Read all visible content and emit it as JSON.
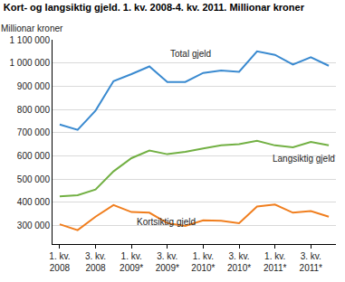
{
  "chart_data": {
    "type": "line",
    "title": "Kort- og langsiktig gjeld. 1. kv. 2008-4. kv. 2011. Millionar kroner",
    "ylabel": "Millionar kroner",
    "categories": [
      "1. kv. 2008",
      null,
      "3. kv. 2008",
      null,
      "1. kv. 2009*",
      null,
      "3. kv. 2009*",
      null,
      "1. kv. 2010*",
      null,
      "3. kv. 2010*",
      null,
      "1. kv. 2011*",
      null,
      "3. kv. 2011*",
      null
    ],
    "series": [
      {
        "name": "Total gjeld",
        "color": "#3a8ad0",
        "values": [
          735000,
          712000,
          795000,
          922000,
          952000,
          985000,
          918000,
          918000,
          957000,
          968000,
          962000,
          1050000,
          1035000,
          993000,
          1025000,
          988000
        ]
      },
      {
        "name": "Langsiktig gjeld",
        "color": "#72b043",
        "values": [
          425000,
          430000,
          455000,
          533000,
          590000,
          623000,
          607000,
          617000,
          632000,
          645000,
          650000,
          665000,
          645000,
          637000,
          660000,
          645000
        ]
      },
      {
        "name": "Kortsiktig gjeld",
        "color": "#f07e1e",
        "values": [
          305000,
          280000,
          338000,
          388000,
          358000,
          355000,
          310000,
          298000,
          322000,
          320000,
          310000,
          382000,
          390000,
          355000,
          362000,
          338000
        ]
      }
    ],
    "ylim": [
      220000,
      1100000
    ],
    "yticks": [
      {
        "value": 300000,
        "label": "300 000"
      },
      {
        "value": 400000,
        "label": "400 000"
      },
      {
        "value": 500000,
        "label": "500 000"
      },
      {
        "value": 600000,
        "label": "600 000"
      },
      {
        "value": 700000,
        "label": "700 000"
      },
      {
        "value": 800000,
        "label": "800 000"
      },
      {
        "value": 900000,
        "label": "900 000"
      },
      {
        "value": 1000000,
        "label": "1 000 000"
      },
      {
        "value": 1100000,
        "label": "1 100 000"
      }
    ],
    "grid": true
  }
}
